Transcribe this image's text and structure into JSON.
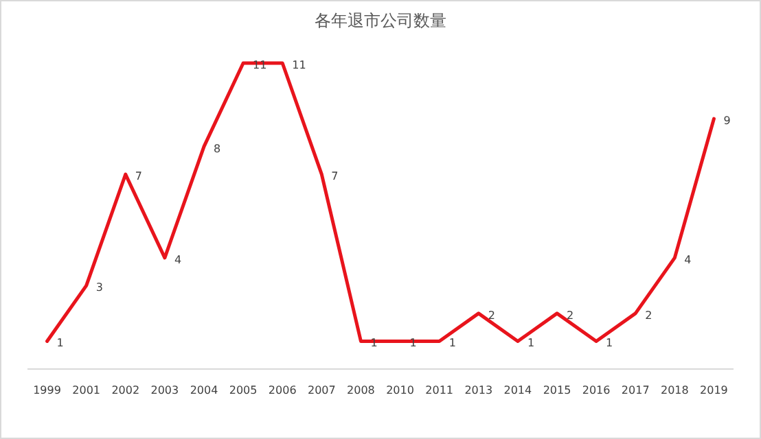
{
  "chart_data": {
    "type": "line",
    "title": "各年退市公司数量",
    "categories": [
      "1999",
      "2001",
      "2002",
      "2003",
      "2004",
      "2005",
      "2006",
      "2007",
      "2008",
      "2010",
      "2011",
      "2013",
      "2014",
      "2015",
      "2016",
      "2017",
      "2018",
      "2019"
    ],
    "series": [
      {
        "color": "#e8141c",
        "values": [
          1,
          3,
          7,
          4,
          8,
          11,
          11,
          7,
          1,
          1,
          1,
          2,
          1,
          2,
          1,
          2,
          4,
          9
        ]
      }
    ],
    "data_labels": true
  }
}
